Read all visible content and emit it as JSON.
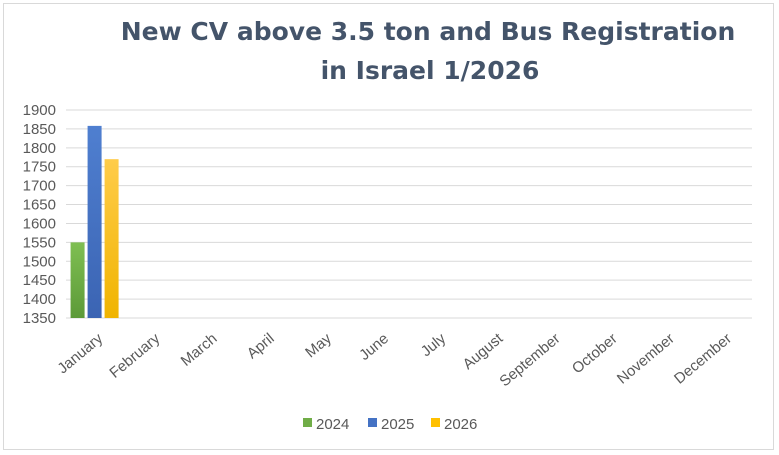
{
  "chart_data": {
    "type": "bar",
    "title_line1": "New CV above 3.5 ton and Bus Registration",
    "title_line2": "in Israel 1/2026",
    "categories": [
      "January",
      "February",
      "March",
      "April",
      "May",
      "June",
      "July",
      "August",
      "September",
      "October",
      "November",
      "December"
    ],
    "series": [
      {
        "name": "2024",
        "color": "#70ad47",
        "values": [
          1550,
          null,
          null,
          null,
          null,
          null,
          null,
          null,
          null,
          null,
          null,
          null
        ]
      },
      {
        "name": "2025",
        "color": "#4472c4",
        "values": [
          1858,
          null,
          null,
          null,
          null,
          null,
          null,
          null,
          null,
          null,
          null,
          null
        ]
      },
      {
        "name": "2026",
        "color": "#ffc000",
        "values": [
          1770,
          null,
          null,
          null,
          null,
          null,
          null,
          null,
          null,
          null,
          null,
          null
        ]
      }
    ],
    "ylim": [
      1350,
      1900
    ],
    "yticks": [
      "1900",
      "1850",
      "1800",
      "1750",
      "1700",
      "1650",
      "1600",
      "1550",
      "1500",
      "1450",
      "1400",
      "1350"
    ],
    "grid": true,
    "legend": "bottom"
  }
}
